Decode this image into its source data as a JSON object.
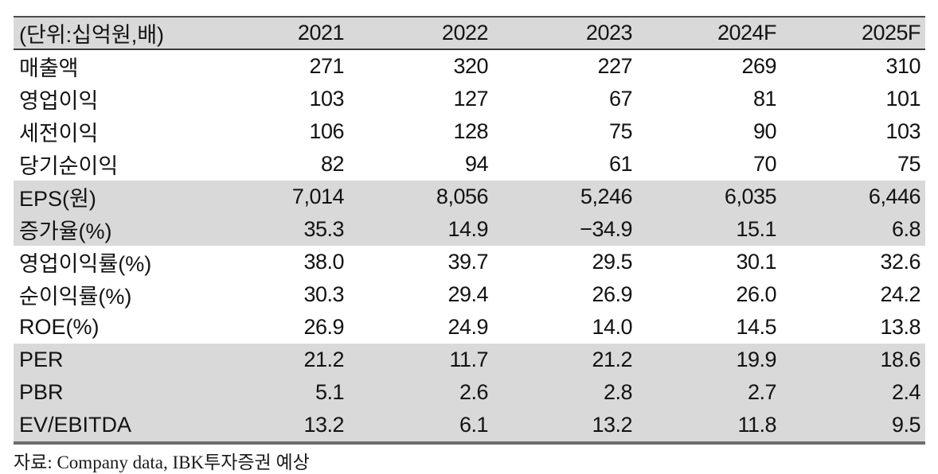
{
  "table": {
    "unit_label": "(단위:십억원,배)",
    "columns": [
      "2021",
      "2022",
      "2023",
      "2024F",
      "2025F"
    ],
    "rows": [
      {
        "label": "매출액",
        "shaded": false,
        "values": [
          "271",
          "320",
          "227",
          "269",
          "310"
        ]
      },
      {
        "label": "영업이익",
        "shaded": false,
        "values": [
          "103",
          "127",
          "67",
          "81",
          "101"
        ]
      },
      {
        "label": "세전이익",
        "shaded": false,
        "values": [
          "106",
          "128",
          "75",
          "90",
          "103"
        ]
      },
      {
        "label": "당기순이익",
        "shaded": false,
        "values": [
          "82",
          "94",
          "61",
          "70",
          "75"
        ]
      },
      {
        "label": "EPS(원)",
        "shaded": true,
        "values": [
          "7,014",
          "8,056",
          "5,246",
          "6,035",
          "6,446"
        ]
      },
      {
        "label": "증가율(%)",
        "shaded": true,
        "values": [
          "35.3",
          "14.9",
          "−34.9",
          "15.1",
          "6.8"
        ]
      },
      {
        "label": "영업이익률(%)",
        "shaded": false,
        "values": [
          "38.0",
          "39.7",
          "29.5",
          "30.1",
          "32.6"
        ]
      },
      {
        "label": "순이익률(%)",
        "shaded": false,
        "values": [
          "30.3",
          "29.4",
          "26.9",
          "26.0",
          "24.2"
        ]
      },
      {
        "label": "ROE(%)",
        "shaded": false,
        "values": [
          "26.9",
          "24.9",
          "14.0",
          "14.5",
          "13.8"
        ]
      },
      {
        "label": "PER",
        "shaded": true,
        "values": [
          "21.2",
          "11.7",
          "21.2",
          "19.9",
          "18.6"
        ]
      },
      {
        "label": "PBR",
        "shaded": true,
        "values": [
          "5.1",
          "2.6",
          "2.8",
          "2.7",
          "2.4"
        ]
      },
      {
        "label": "EV/EBITDA",
        "shaded": true,
        "values": [
          "13.2",
          "6.1",
          "13.2",
          "11.8",
          "9.5"
        ]
      }
    ]
  },
  "footer": {
    "source_text": "자료: Company data, IBK투자증권 예상"
  },
  "colors": {
    "row_shade": "#d9d9d9",
    "header_shade": "#d9d9d9",
    "border_top": "#4c4c4c",
    "header_underline": "#3e3e3e",
    "border_bottom": "#6e6e6e",
    "text": "#121212"
  }
}
